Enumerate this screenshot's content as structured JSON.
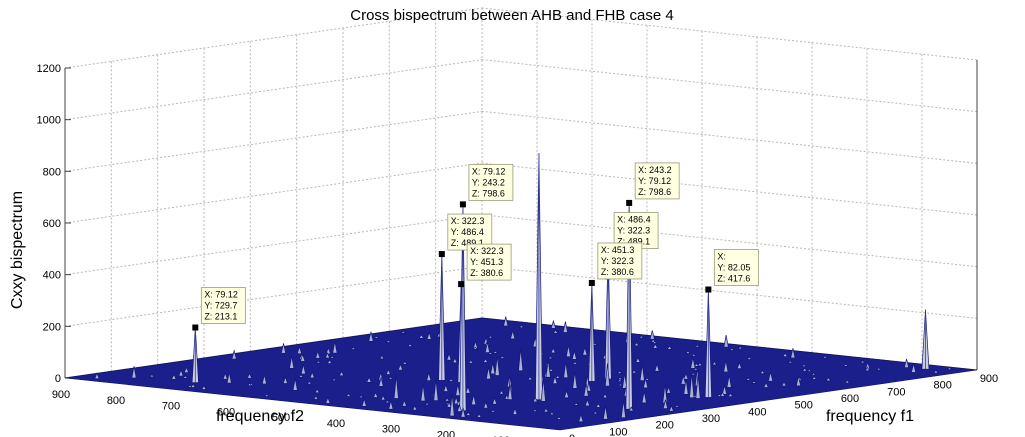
{
  "chart_data": {
    "type": "surface",
    "title": "Cross bispectrum between AHB and FHB case 4",
    "xlabel": "frequency f1",
    "ylabel": "frequency f2",
    "zlabel": "Cxxy bispectrum",
    "xlim": [
      0,
      900
    ],
    "ylim": [
      0,
      900
    ],
    "zlim": [
      0,
      1200
    ],
    "xticks": [
      "0",
      "100",
      "200",
      "300",
      "400",
      "500",
      "600",
      "700",
      "800",
      "900"
    ],
    "yticks": [
      "0",
      "100",
      "200",
      "300",
      "400",
      "500",
      "600",
      "700",
      "800",
      "900"
    ],
    "zticks": [
      "0",
      "200",
      "400",
      "600",
      "800",
      "1000",
      "1200"
    ],
    "grid": true,
    "colors": {
      "surface": "#1a1f8c",
      "peak": "#c8cde0",
      "box": "#444444"
    },
    "peaks": [
      {
        "x": 243.2,
        "y": 243.2,
        "z": 955
      },
      {
        "x": 860,
        "y": 60,
        "z": 230
      }
    ],
    "datatips": [
      {
        "x": 79.12,
        "y": 729.7,
        "z": 213.1,
        "lines": [
          "X: 79.12",
          "Y: 729.7",
          "Z: 213.1"
        ]
      },
      {
        "x": 322.3,
        "y": 486.4,
        "z": 489.1,
        "lines": [
          "X: 322.3",
          "Y: 486.4",
          "Z: 489.1"
        ]
      },
      {
        "x": 322.3,
        "y": 451.3,
        "z": 380.6,
        "lines": [
          "X: 322.3",
          "Y: 451.3",
          "Z: 380.6"
        ]
      },
      {
        "x": 79.12,
        "y": 243.2,
        "z": 798.6,
        "lines": [
          "X: 79.12",
          "Y: 243.2",
          "Z: 798.6"
        ]
      },
      {
        "x": 243.2,
        "y": 79.12,
        "z": 798.6,
        "lines": [
          "X: 243.2",
          "Y: 79.12",
          "Z: 798.6"
        ]
      },
      {
        "x": 486.4,
        "y": 322.3,
        "z": 489.1,
        "lines": [
          "X: 486.4",
          "Y: 322.3",
          "Z: 489.1"
        ]
      },
      {
        "x": 451.3,
        "y": 322.3,
        "z": 380.6,
        "lines": [
          "X: 451.3",
          "Y: 322.3",
          "Z: 380.6"
        ]
      },
      {
        "x": 417.6,
        "y": 82.05,
        "z": 417.6,
        "lines": [
          "X: ",
          "Y: 82.05",
          "Z: 417.6"
        ]
      }
    ]
  }
}
